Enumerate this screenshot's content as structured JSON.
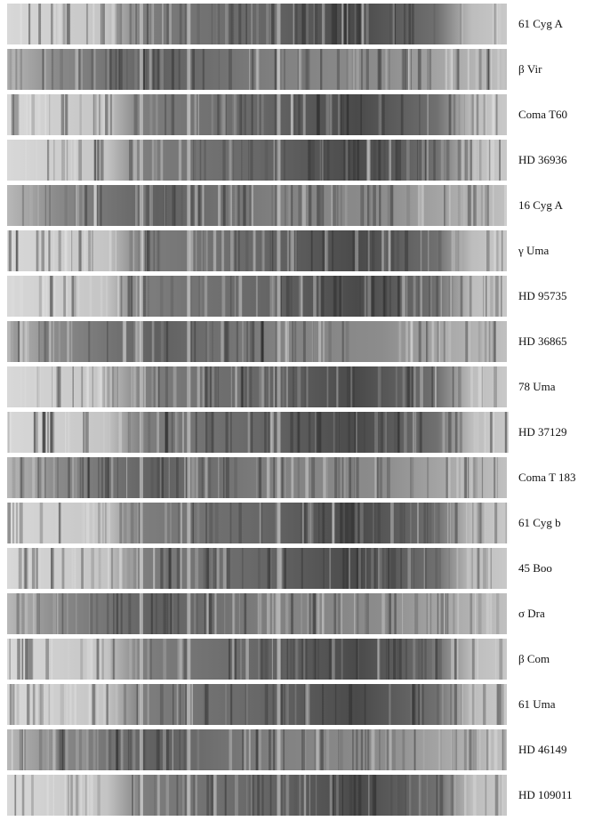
{
  "spectra": [
    {
      "label": "61 Cyg A"
    },
    {
      "label": "β Vir"
    },
    {
      "label": "Coma T60"
    },
    {
      "label": "HD 36936"
    },
    {
      "label": "16 Cyg A"
    },
    {
      "label": "γ Uma"
    },
    {
      "label": "HD 95735"
    },
    {
      "label": "HD 36865"
    },
    {
      "label": "78 Uma"
    },
    {
      "label": "HD 37129"
    },
    {
      "label": "Coma T 183"
    },
    {
      "label": "61 Cyg b"
    },
    {
      "label": "45 Boo"
    },
    {
      "label": "σ Dra"
    },
    {
      "label": "β Com"
    },
    {
      "label": "61 Uma"
    },
    {
      "label": "HD 46149"
    },
    {
      "label": "HD 109011"
    }
  ]
}
